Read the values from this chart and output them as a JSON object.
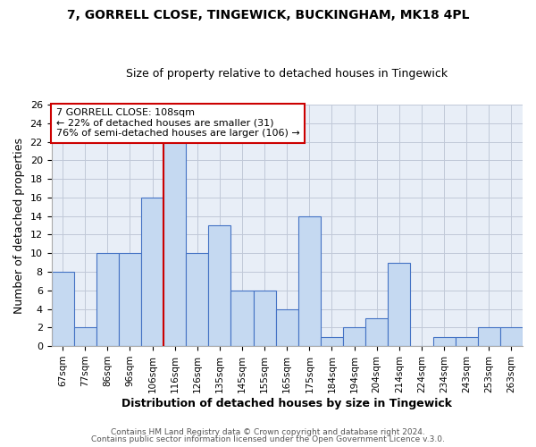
{
  "title": "7, GORRELL CLOSE, TINGEWICK, BUCKINGHAM, MK18 4PL",
  "subtitle": "Size of property relative to detached houses in Tingewick",
  "xlabel": "Distribution of detached houses by size in Tingewick",
  "ylabel": "Number of detached properties",
  "bin_labels": [
    "67sqm",
    "77sqm",
    "86sqm",
    "96sqm",
    "106sqm",
    "116sqm",
    "126sqm",
    "135sqm",
    "145sqm",
    "155sqm",
    "165sqm",
    "175sqm",
    "184sqm",
    "194sqm",
    "204sqm",
    "214sqm",
    "224sqm",
    "234sqm",
    "243sqm",
    "253sqm",
    "263sqm"
  ],
  "bar_values": [
    8,
    2,
    10,
    10,
    16,
    22,
    10,
    13,
    6,
    6,
    4,
    14,
    1,
    2,
    3,
    9,
    0,
    1,
    1,
    2,
    2
  ],
  "bar_color": "#c5d9f1",
  "bar_edge_color": "#4472c4",
  "vline_x_index": 4,
  "vline_color": "#cc0000",
  "ylim_max": 26,
  "yticks": [
    0,
    2,
    4,
    6,
    8,
    10,
    12,
    14,
    16,
    18,
    20,
    22,
    24,
    26
  ],
  "annotation_title": "7 GORRELL CLOSE: 108sqm",
  "annotation_line1": "← 22% of detached houses are smaller (31)",
  "annotation_line2": "76% of semi-detached houses are larger (106) →",
  "annotation_box_color": "#cc0000",
  "footer_line1": "Contains HM Land Registry data © Crown copyright and database right 2024.",
  "footer_line2": "Contains public sector information licensed under the Open Government Licence v.3.0.",
  "grid_color": "#c0c8d8",
  "plot_bg_color": "#e8eef7",
  "fig_bg_color": "#ffffff"
}
